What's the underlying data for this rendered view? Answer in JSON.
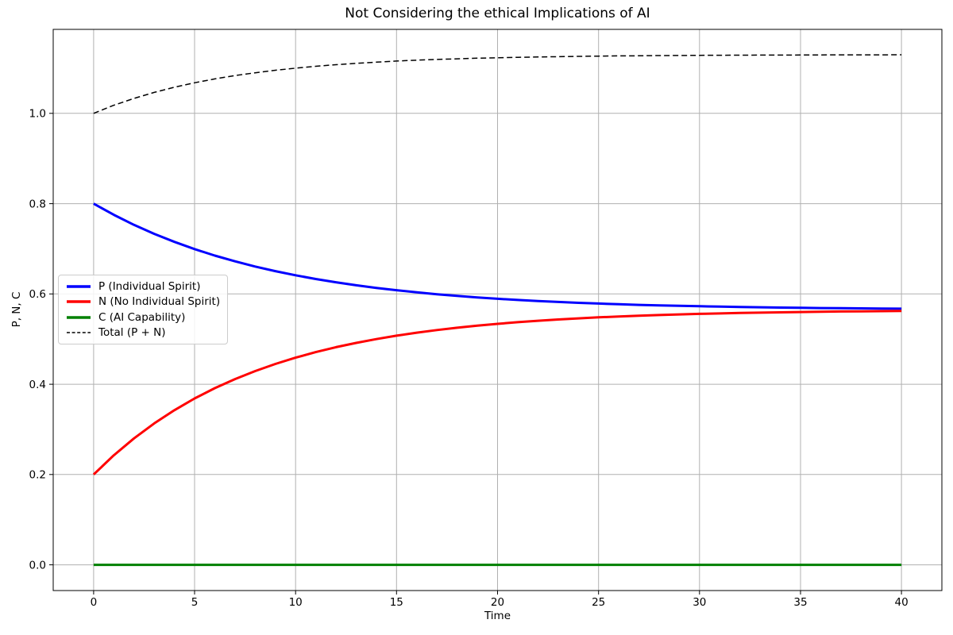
{
  "chart_data": {
    "type": "line",
    "title": "Not Considering the ethical Implications of AI",
    "xlabel": "Time",
    "ylabel": "P, N, C",
    "xlim": [
      -2,
      42
    ],
    "ylim": [
      -0.057,
      1.186
    ],
    "x_ticks": [
      0,
      5,
      10,
      15,
      20,
      25,
      30,
      35,
      40
    ],
    "y_ticks": [
      0.0,
      0.2,
      0.4,
      0.6,
      0.8,
      1.0
    ],
    "y_tick_labels": [
      "0.0",
      "0.2",
      "0.4",
      "0.6",
      "0.8",
      "1.0"
    ],
    "grid": true,
    "grid_color": "#B0B0B0",
    "spine_color": "#000000",
    "background_color": "#FFFFFF",
    "legend_position": "center left",
    "legend_edge_color": "#CCCCCC",
    "x": [
      0,
      1,
      2,
      3,
      4,
      5,
      6,
      7,
      8,
      9,
      10,
      11,
      12,
      13,
      14,
      15,
      16,
      17,
      18,
      19,
      20,
      21,
      22,
      23,
      24,
      25,
      26,
      27,
      28,
      29,
      30,
      31,
      32,
      33,
      34,
      35,
      36,
      37,
      38,
      39,
      40
    ],
    "series": [
      {
        "name": "P (Individual Spirit)",
        "color": "#0000FF",
        "style": "solid",
        "values": [
          0.8,
          0.7753,
          0.753,
          0.7331,
          0.7153,
          0.6993,
          0.685,
          0.6722,
          0.6607,
          0.6504,
          0.6413,
          0.6331,
          0.6258,
          0.6192,
          0.6134,
          0.6082,
          0.6035,
          0.5993,
          0.5956,
          0.5923,
          0.5893,
          0.5867,
          0.5843,
          0.5822,
          0.5803,
          0.5787,
          0.5772,
          0.5758,
          0.5746,
          0.5736,
          0.5727,
          0.5718,
          0.5711,
          0.5704,
          0.5698,
          0.5693,
          0.5688,
          0.5684,
          0.568,
          0.5677,
          0.5674
        ]
      },
      {
        "name": "N (No Individual Spirit)",
        "color": "#FF0000",
        "style": "solid",
        "values": [
          0.2,
          0.2426,
          0.2801,
          0.3133,
          0.3425,
          0.3684,
          0.3913,
          0.4114,
          0.4292,
          0.445,
          0.4588,
          0.4711,
          0.482,
          0.4916,
          0.5,
          0.5076,
          0.5142,
          0.52,
          0.5252,
          0.5298,
          0.5338,
          0.5374,
          0.5406,
          0.5434,
          0.5459,
          0.5481,
          0.55,
          0.5517,
          0.5533,
          0.5546,
          0.5558,
          0.5568,
          0.5578,
          0.5586,
          0.5593,
          0.56,
          0.5606,
          0.5611,
          0.5615,
          0.5619,
          0.5623
        ]
      },
      {
        "name": "C (AI Capability)",
        "color": "#008000",
        "style": "solid",
        "values": [
          0,
          0,
          0,
          0,
          0,
          0,
          0,
          0,
          0,
          0,
          0,
          0,
          0,
          0,
          0,
          0,
          0,
          0,
          0,
          0,
          0,
          0,
          0,
          0,
          0,
          0,
          0,
          0,
          0,
          0,
          0,
          0,
          0,
          0,
          0,
          0,
          0,
          0,
          0,
          0,
          0
        ]
      },
      {
        "name": "Total (P + N)",
        "color": "#000000",
        "style": "dashed",
        "values": [
          1.0,
          1.0179,
          1.0331,
          1.0464,
          1.0578,
          1.0677,
          1.0763,
          1.0836,
          1.0899,
          1.0954,
          1.1001,
          1.1042,
          1.1078,
          1.1108,
          1.1134,
          1.1158,
          1.1177,
          1.1193,
          1.1208,
          1.1221,
          1.1231,
          1.1241,
          1.1249,
          1.1256,
          1.1262,
          1.1268,
          1.1272,
          1.1275,
          1.1279,
          1.1282,
          1.1285,
          1.1286,
          1.1289,
          1.129,
          1.1291,
          1.1293,
          1.1294,
          1.1295,
          1.1295,
          1.1296,
          1.1297
        ]
      }
    ]
  }
}
